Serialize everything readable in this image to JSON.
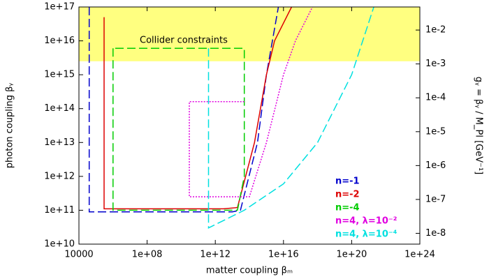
{
  "chart_data": {
    "type": "line",
    "x_label": "matter coupling βₘ",
    "y_label": "photon coupling βᵧ",
    "y2_label": "gᵧ = βᵧ / M_Pl [GeV⁻¹]",
    "xscale": "log",
    "yscale": "log",
    "y2scale": "log",
    "xlim": [
      10000,
      1e+24
    ],
    "ylim": [
      10000000000.0,
      1e+17
    ],
    "y2lim": [
      4.8e-09,
      0.048
    ],
    "xticks": [
      10000,
      {
        "value": 100000000.0,
        "label": "1e+08"
      },
      {
        "value": 1000000000000.0,
        "label": "1e+12"
      },
      {
        "value": 1e+16,
        "label": "1e+16"
      },
      {
        "value": 1e+20,
        "label": "1e+20"
      },
      {
        "value": 1e+24,
        "label": "1e+24"
      }
    ],
    "yticks": [
      {
        "value": 10000000000.0,
        "label": "1e+10"
      },
      {
        "value": 100000000000.0,
        "label": "1e+11"
      },
      {
        "value": 1000000000000.0,
        "label": "1e+12"
      },
      {
        "value": 10000000000000.0,
        "label": "1e+13"
      },
      {
        "value": 100000000000000.0,
        "label": "1e+14"
      },
      {
        "value": 1000000000000000.0,
        "label": "1e+15"
      },
      {
        "value": 1e+16,
        "label": "1e+16"
      },
      {
        "value": 1e+17,
        "label": "1e+17"
      }
    ],
    "y2ticks": [
      {
        "value": 1e-08,
        "label": "1e-8"
      },
      {
        "value": 1e-07,
        "label": "1e-7"
      },
      {
        "value": 1e-06,
        "label": "1e-6"
      },
      {
        "value": 1e-05,
        "label": "1e-5"
      },
      {
        "value": 0.0001,
        "label": "1e-4"
      },
      {
        "value": 0.001,
        "label": "1e-3"
      },
      {
        "value": 0.01,
        "label": "1e-2"
      }
    ],
    "region": {
      "label": "Collider constraints",
      "ylim": [
        2500000000000000.0,
        1e+17
      ],
      "color": "#ffff80"
    },
    "legend": "lower right",
    "series": [
      {
        "name": "n=-1",
        "color": "#0000cc",
        "style": "dashed",
        "x": [
          40000,
          40000,
          10000000000000.0,
          30000000000000.0,
          300000000000000.0,
          1000000000000000.0,
          5000000000000000.0
        ],
        "y": [
          1e+17,
          90000000000.0,
          90000000000.0,
          100000000000.0,
          10000000000000.0,
          1000000000000000.0,
          1e+17
        ]
      },
      {
        "name": "n=-2",
        "color": "#dd0000",
        "style": "solid",
        "x": [
          300000,
          300000,
          3000000000000.0,
          20000000000000.0,
          200000000000000.0,
          1000000000000000.0,
          3000000000000000.0,
          3e+16
        ],
        "y": [
          5e+16,
          110000000000.0,
          110000000000.0,
          120000000000.0,
          10000000000000.0,
          1000000000000000.0,
          1e+16,
          1e+17
        ]
      },
      {
        "name": "n=-4",
        "color": "#00cc00",
        "style": "dashed",
        "x": [
          1000000,
          1000000,
          20000000000000.0,
          50000000000000.0,
          50000000000000.0,
          1000000
        ],
        "y": [
          6000000000000000.0,
          100000000000.0,
          100000000000.0,
          1000000000000.0,
          6000000000000000.0,
          6000000000000000.0
        ]
      },
      {
        "name": "n=4, λ=10⁻²",
        "color": "#e000e0",
        "style": "dotted",
        "x": [
          50000000000000.0,
          30000000000.0,
          30000000000.0,
          100000000000000.0,
          1000000000000000.0,
          1e+16,
          5e+16,
          5e+17
        ],
        "y": [
          160000000000000.0,
          160000000000000.0,
          250000000000.0,
          250000000000.0,
          10000000000000.0,
          1000000000000000.0,
          1e+16,
          1e+17
        ]
      },
      {
        "name": "n=4, λ=10⁻⁴",
        "color": "#00e0e0",
        "style": "dashed",
        "x": [
          400000000000,
          400000000000,
          50000000000000.0,
          1e+16,
          1e+18,
          1e+20,
          2e+21
        ],
        "y": [
          6000000000000000.0,
          30000000000.0,
          100000000000.0,
          600000000000.0,
          10000000000000.0,
          1000000000000000.0,
          1e+17
        ]
      }
    ]
  }
}
